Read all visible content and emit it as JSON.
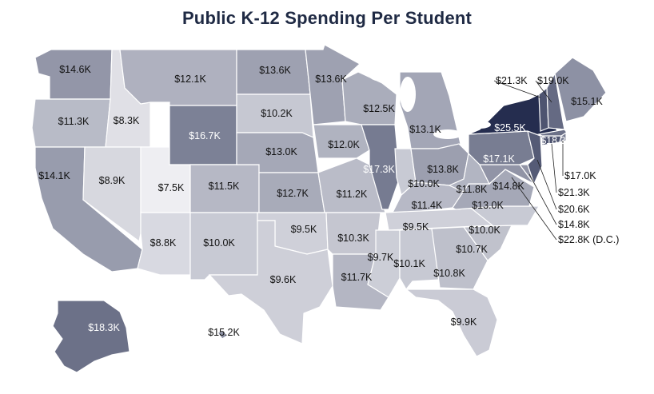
{
  "title": "Public K-12 Spending Per Student",
  "colors": {
    "lowest": "#eeeef2",
    "highest": "#252d4f",
    "border": "#ffffff",
    "lake": "#ffffff"
  },
  "states": {
    "WA": {
      "value": 14.6,
      "label": "$14.6K"
    },
    "OR": {
      "value": 11.3,
      "label": "$11.3K"
    },
    "CA": {
      "value": 14.1,
      "label": "$14.1K"
    },
    "ID": {
      "value": 8.3,
      "label": "$8.3K"
    },
    "NV": {
      "value": 8.9,
      "label": "$8.9K"
    },
    "UT": {
      "value": 7.5,
      "label": "$7.5K"
    },
    "AZ": {
      "value": 8.8,
      "label": "$8.8K"
    },
    "MT": {
      "value": 12.1,
      "label": "$12.1K"
    },
    "WY": {
      "value": 16.7,
      "label": "$16.7K"
    },
    "CO": {
      "value": 11.5,
      "label": "$11.5K"
    },
    "NM": {
      "value": 10.0,
      "label": "$10.0K"
    },
    "ND": {
      "value": 13.6,
      "label": "$13.6K"
    },
    "SD": {
      "value": 10.2,
      "label": "$10.2K"
    },
    "NE": {
      "value": 13.0,
      "label": "$13.0K"
    },
    "KS": {
      "value": 12.7,
      "label": "$12.7K"
    },
    "OK": {
      "value": 9.5,
      "label": "$9.5K"
    },
    "TX": {
      "value": 9.6,
      "label": "$9.6K"
    },
    "MN": {
      "value": 13.6,
      "label": "$13.6K"
    },
    "IA": {
      "value": 12.0,
      "label": "$12.0K"
    },
    "MO": {
      "value": 11.2,
      "label": "$11.2K"
    },
    "AR": {
      "value": 10.3,
      "label": "$10.3K"
    },
    "LA": {
      "value": 11.7,
      "label": "$11.7K"
    },
    "WI": {
      "value": 12.5,
      "label": "$12.5K"
    },
    "IL": {
      "value": 17.3,
      "label": "$17.3K"
    },
    "MI": {
      "value": 13.1,
      "label": "$13.1K"
    },
    "IN": {
      "value": 10.0,
      "label": "$10.0K"
    },
    "OH": {
      "value": 13.8,
      "label": "$13.8K"
    },
    "KY": {
      "value": 11.4,
      "label": "$11.4K"
    },
    "TN": {
      "value": 9.5,
      "label": "$9.5K"
    },
    "MS": {
      "value": 9.7,
      "label": "$9.7K"
    },
    "AL": {
      "value": 10.1,
      "label": "$10.1K"
    },
    "GA": {
      "value": 10.8,
      "label": "$10.8K"
    },
    "FL": {
      "value": 9.9,
      "label": "$9.9K"
    },
    "SC": {
      "value": 10.7,
      "label": "$10.7K"
    },
    "NC": {
      "value": 10.0,
      "label": "$10.0K"
    },
    "VA": {
      "value": 13.0,
      "label": "$13.0K"
    },
    "WV": {
      "value": 11.8,
      "label": "$11.8K"
    },
    "MD": {
      "value": 14.8,
      "label": "$14.8K"
    },
    "PA": {
      "value": 17.1,
      "label": "$17.1K"
    },
    "NY": {
      "value": 25.5,
      "label": "$25.5K"
    },
    "VT": {
      "value": 21.3,
      "label": "$21.3K"
    },
    "NH": {
      "value": 19.0,
      "label": "$19.0K"
    },
    "ME": {
      "value": 15.1,
      "label": "$15.1K"
    },
    "MA": {
      "value": 18.3,
      "label": "$18.3K"
    },
    "RI": {
      "value": 17.0,
      "label": "$17.0K"
    },
    "CT": {
      "value": 21.3,
      "label": "$21.3K"
    },
    "NJ": {
      "value": 20.6,
      "label": "$20.6K"
    },
    "DE": {
      "value": 14.8,
      "label": "$14.8K"
    },
    "DC": {
      "value": 22.8,
      "label": "$22.8K (D.C.)"
    },
    "AK": {
      "value": 18.3,
      "label": "$18.3K"
    },
    "HI": {
      "value": 15.2,
      "label": "$15.2K"
    }
  }
}
